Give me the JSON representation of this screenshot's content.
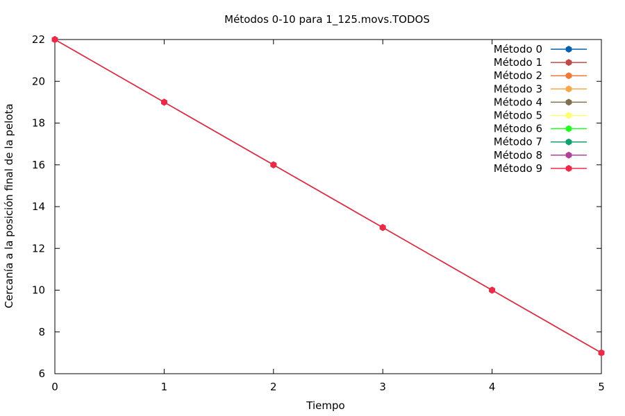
{
  "chart_data": {
    "type": "line",
    "title": "Métodos 0-10 para 1_125.movs.TODOS",
    "xlabel": "Tiempo",
    "ylabel": "Cercanía a la posición final de la pelota",
    "xlim": [
      0,
      5
    ],
    "ylim": [
      6,
      22
    ],
    "xticks": [
      0,
      1,
      2,
      3,
      4,
      5
    ],
    "yticks": [
      6,
      8,
      10,
      12,
      14,
      16,
      18,
      20,
      22
    ],
    "grid": false,
    "legend_position": "top-right",
    "x": [
      0,
      1,
      2,
      3,
      4,
      5
    ],
    "series": [
      {
        "name": "Método 0",
        "color": "#0060ad",
        "values": [
          22,
          19,
          16,
          13,
          10,
          7
        ]
      },
      {
        "name": "Método 1",
        "color": "#c04a48",
        "values": [
          22,
          19,
          16,
          13,
          10,
          7
        ]
      },
      {
        "name": "Método 2",
        "color": "#f07838",
        "values": [
          22,
          19,
          16,
          13,
          10,
          7
        ]
      },
      {
        "name": "Método 3",
        "color": "#f8a848",
        "values": [
          22,
          19,
          16,
          13,
          10,
          7
        ]
      },
      {
        "name": "Método 4",
        "color": "#807050",
        "values": [
          22,
          19,
          16,
          13,
          10,
          7
        ]
      },
      {
        "name": "Método 5",
        "color": "#ffff70",
        "values": [
          22,
          19,
          16,
          13,
          10,
          7
        ]
      },
      {
        "name": "Método 6",
        "color": "#20ff20",
        "values": [
          22,
          19,
          16,
          13,
          10,
          7
        ]
      },
      {
        "name": "Método 7",
        "color": "#10a070",
        "values": [
          22,
          19,
          16,
          13,
          10,
          7
        ]
      },
      {
        "name": "Método 8",
        "color": "#b04098",
        "values": [
          22,
          19,
          16,
          13,
          10,
          7
        ]
      },
      {
        "name": "Método 9",
        "color": "#f02848",
        "values": [
          22,
          19,
          16,
          13,
          10,
          7
        ]
      }
    ]
  }
}
